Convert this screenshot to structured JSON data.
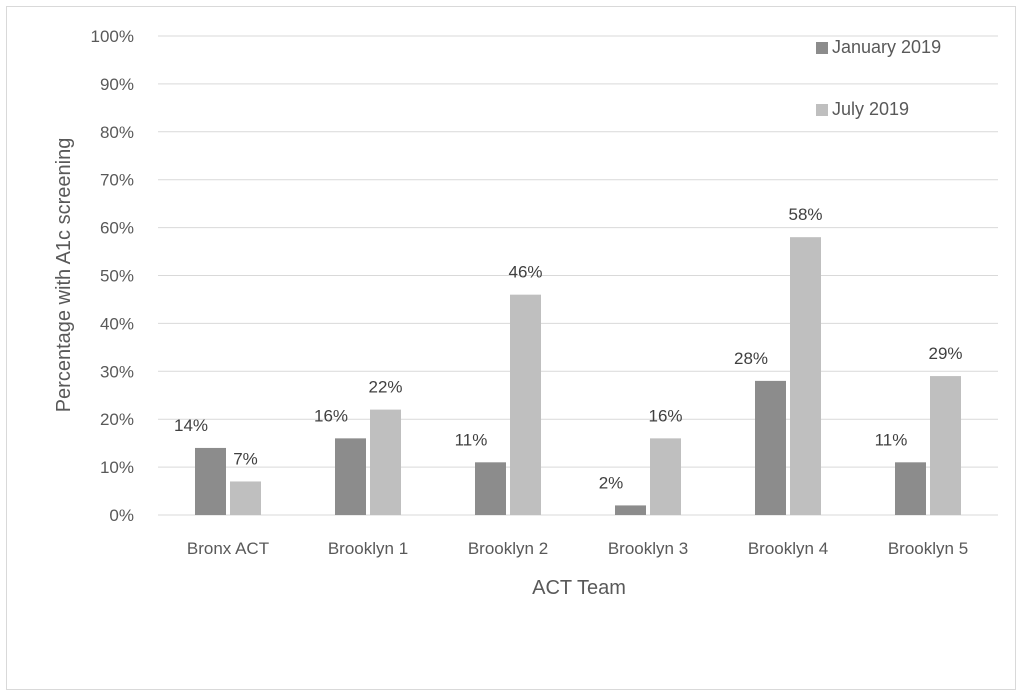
{
  "chart_data": {
    "type": "bar",
    "categories": [
      "Bronx ACT",
      "Brooklyn 1",
      "Brooklyn 2",
      "Brooklyn 3",
      "Brooklyn 4",
      "Brooklyn 5"
    ],
    "series": [
      {
        "name": "January 2019",
        "values": [
          14,
          16,
          11,
          2,
          28,
          11
        ],
        "labels": [
          "14%",
          "16%",
          "11%",
          "2%",
          "28%",
          "11%"
        ],
        "color": "#8c8c8c"
      },
      {
        "name": "July 2019",
        "values": [
          7,
          22,
          46,
          16,
          58,
          29
        ],
        "labels": [
          "7%",
          "22%",
          "46%",
          "16%",
          "58%",
          "29%"
        ],
        "color": "#bfbfbf"
      }
    ],
    "yticks": [
      "0%",
      "10%",
      "20%",
      "30%",
      "40%",
      "50%",
      "60%",
      "70%",
      "80%",
      "90%",
      "100%"
    ],
    "ylim": [
      0,
      100
    ],
    "xlabel": "ACT Team",
    "ylabel": "Percentage with A1c screening",
    "grid": true,
    "legend_position": "top-right",
    "gridline_color": "#d9d9d9"
  }
}
